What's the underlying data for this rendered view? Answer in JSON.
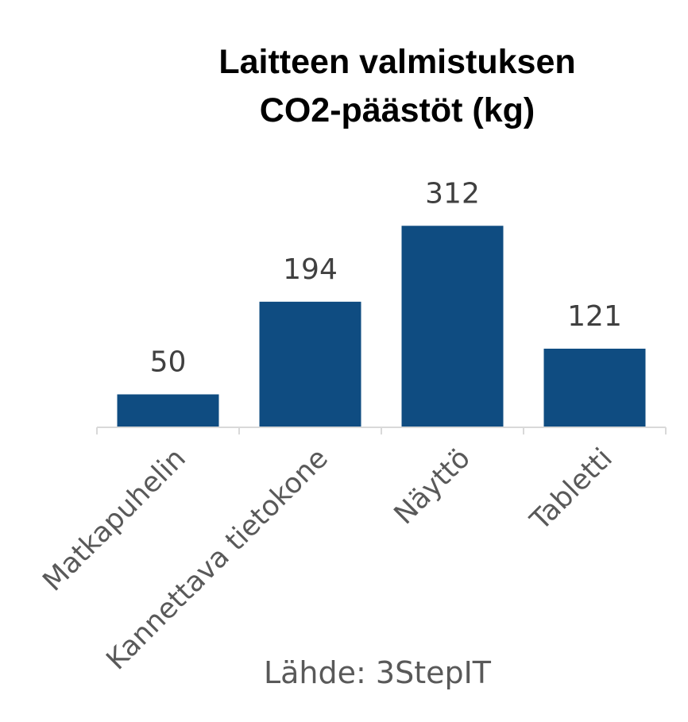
{
  "colors": {
    "bar": "#0f4c81",
    "axis": "#d9d9d9",
    "title": "#000000",
    "value_label": "#404040",
    "category_label": "#595959",
    "source": "#595959"
  },
  "chart_data": {
    "type": "bar",
    "title_lines": [
      "Laitteen valmistuksen",
      "CO2-päästöt (kg)"
    ],
    "categories": [
      "Matkapuhelin",
      "Kannettava tietokone",
      "Näyttö",
      "Tabletti"
    ],
    "values": [
      50,
      194,
      312,
      121
    ],
    "data_labels": [
      "50",
      "194",
      "312",
      "121"
    ],
    "xlabel": "",
    "ylabel": "",
    "ylim": [
      0,
      330
    ],
    "grid": false,
    "legend": "none",
    "source": "Lähde: 3StepIT"
  }
}
